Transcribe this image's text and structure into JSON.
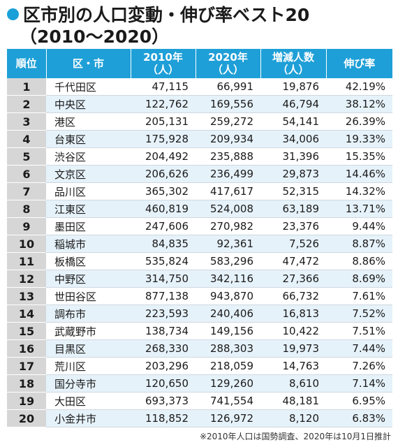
{
  "title": {
    "line1": "区市別の人口変動・伸び率ベスト20",
    "line2": "（2010～2020）"
  },
  "accent_color": "#1e9fd7",
  "columns": {
    "rank": "順位",
    "name": "区・市",
    "v2010": "2010年（人）",
    "v2020": "2020年（人）",
    "diff": "増減人数（人）",
    "rate": "伸び率"
  },
  "rows": [
    {
      "rank": "1",
      "name": "千代田区",
      "v2010": "47,115",
      "v2020": "66,991",
      "diff": "19,876",
      "rate": "42.19%"
    },
    {
      "rank": "2",
      "name": "中央区",
      "v2010": "122,762",
      "v2020": "169,556",
      "diff": "46,794",
      "rate": "38.12%"
    },
    {
      "rank": "3",
      "name": "港区",
      "v2010": "205,131",
      "v2020": "259,272",
      "diff": "54,141",
      "rate": "26.39%"
    },
    {
      "rank": "4",
      "name": "台東区",
      "v2010": "175,928",
      "v2020": "209,934",
      "diff": "34,006",
      "rate": "19.33%"
    },
    {
      "rank": "5",
      "name": "渋谷区",
      "v2010": "204,492",
      "v2020": "235,888",
      "diff": "31,396",
      "rate": "15.35%"
    },
    {
      "rank": "6",
      "name": "文京区",
      "v2010": "206,626",
      "v2020": "236,499",
      "diff": "29,873",
      "rate": "14.46%"
    },
    {
      "rank": "7",
      "name": "品川区",
      "v2010": "365,302",
      "v2020": "417,617",
      "diff": "52,315",
      "rate": "14.32%"
    },
    {
      "rank": "8",
      "name": "江東区",
      "v2010": "460,819",
      "v2020": "524,008",
      "diff": "63,189",
      "rate": "13.71%"
    },
    {
      "rank": "9",
      "name": "墨田区",
      "v2010": "247,606",
      "v2020": "270,982",
      "diff": "23,376",
      "rate": "9.44%"
    },
    {
      "rank": "10",
      "name": "稲城市",
      "v2010": "84,835",
      "v2020": "92,361",
      "diff": "7,526",
      "rate": "8.87%"
    },
    {
      "rank": "11",
      "name": "板橋区",
      "v2010": "535,824",
      "v2020": "583,296",
      "diff": "47,472",
      "rate": "8.86%"
    },
    {
      "rank": "12",
      "name": "中野区",
      "v2010": "314,750",
      "v2020": "342,116",
      "diff": "27,366",
      "rate": "8.69%"
    },
    {
      "rank": "13",
      "name": "世田谷区",
      "v2010": "877,138",
      "v2020": "943,870",
      "diff": "66,732",
      "rate": "7.61%"
    },
    {
      "rank": "14",
      "name": "調布市",
      "v2010": "223,593",
      "v2020": "240,406",
      "diff": "16,813",
      "rate": "7.52%"
    },
    {
      "rank": "15",
      "name": "武蔵野市",
      "v2010": "138,734",
      "v2020": "149,156",
      "diff": "10,422",
      "rate": "7.51%"
    },
    {
      "rank": "16",
      "name": "目黒区",
      "v2010": "268,330",
      "v2020": "288,303",
      "diff": "19,973",
      "rate": "7.44%"
    },
    {
      "rank": "17",
      "name": "荒川区",
      "v2010": "203,296",
      "v2020": "218,059",
      "diff": "14,763",
      "rate": "7.26%"
    },
    {
      "rank": "18",
      "name": "国分寺市",
      "v2010": "120,650",
      "v2020": "129,260",
      "diff": "8,610",
      "rate": "7.14%"
    },
    {
      "rank": "19",
      "name": "大田区",
      "v2010": "693,373",
      "v2020": "741,554",
      "diff": "48,181",
      "rate": "6.95%"
    },
    {
      "rank": "20",
      "name": "小金井市",
      "v2010": "118,852",
      "v2020": "126,972",
      "diff": "8,120",
      "rate": "6.83%"
    }
  ],
  "note": "※2010年人口は国勢調査、2020年は10月1日推計"
}
